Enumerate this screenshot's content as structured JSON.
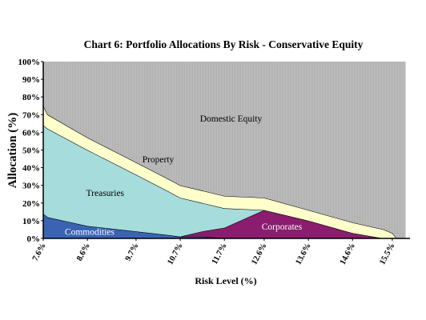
{
  "chart_data": {
    "type": "area",
    "stacked": true,
    "title": "Chart 6: Portfolio Allocations By Risk - Conservative Equity",
    "xlabel": "Risk Level (%)",
    "ylabel": "Allocation (%)",
    "ylim": [
      0,
      100
    ],
    "xlim": [
      7.6,
      15.9
    ],
    "y_tick_labels": [
      "0%",
      "10%",
      "20%",
      "30%",
      "40%",
      "50%",
      "60%",
      "70%",
      "80%",
      "90%",
      "100%"
    ],
    "x_tick_labels": [
      "7.6%",
      "8.6%",
      "9.7%",
      "10.7%",
      "11.7%",
      "12.6%",
      "13.6%",
      "14.6%",
      "15.5%"
    ],
    "x_tick_values": [
      7.6,
      8.6,
      9.7,
      10.7,
      11.7,
      12.6,
      13.6,
      14.6,
      15.5
    ],
    "x": [
      7.6,
      7.7,
      8.6,
      9.7,
      10.4,
      10.7,
      11.2,
      11.7,
      12.6,
      13.6,
      14.6,
      15.3,
      15.5,
      15.6,
      15.8
    ],
    "series": [
      {
        "name": "Commodities",
        "values": [
          14,
          12,
          7,
          4,
          2,
          1,
          1,
          0,
          0,
          0,
          0,
          0,
          0,
          0,
          0
        ]
      },
      {
        "name": "Corporates",
        "values": [
          0,
          0,
          0,
          0,
          0,
          0,
          3,
          6,
          16,
          10,
          3,
          0,
          0,
          0,
          0
        ]
      },
      {
        "name": "Treasuries",
        "values": [
          50,
          50,
          43,
          32,
          25,
          22,
          16,
          11,
          0,
          0,
          0,
          0,
          0,
          0,
          0
        ]
      },
      {
        "name": "Property",
        "values": [
          11,
          8,
          7,
          7,
          7,
          7,
          7,
          7,
          7,
          6,
          6,
          5,
          3,
          0,
          0
        ]
      },
      {
        "name": "Domestic Equity",
        "values": [
          25,
          30,
          43,
          57,
          66,
          70,
          73,
          76,
          77,
          84,
          91,
          95,
          97,
          100,
          100
        ]
      }
    ],
    "colors": {
      "Commodities": "#3a63b2",
      "Corporates": "#8b1c6e",
      "Treasuries": "#a6dcdc",
      "Property": "#ffffcc",
      "Domestic Equity": "#bebebe"
    },
    "grid": false,
    "legend": "none"
  }
}
